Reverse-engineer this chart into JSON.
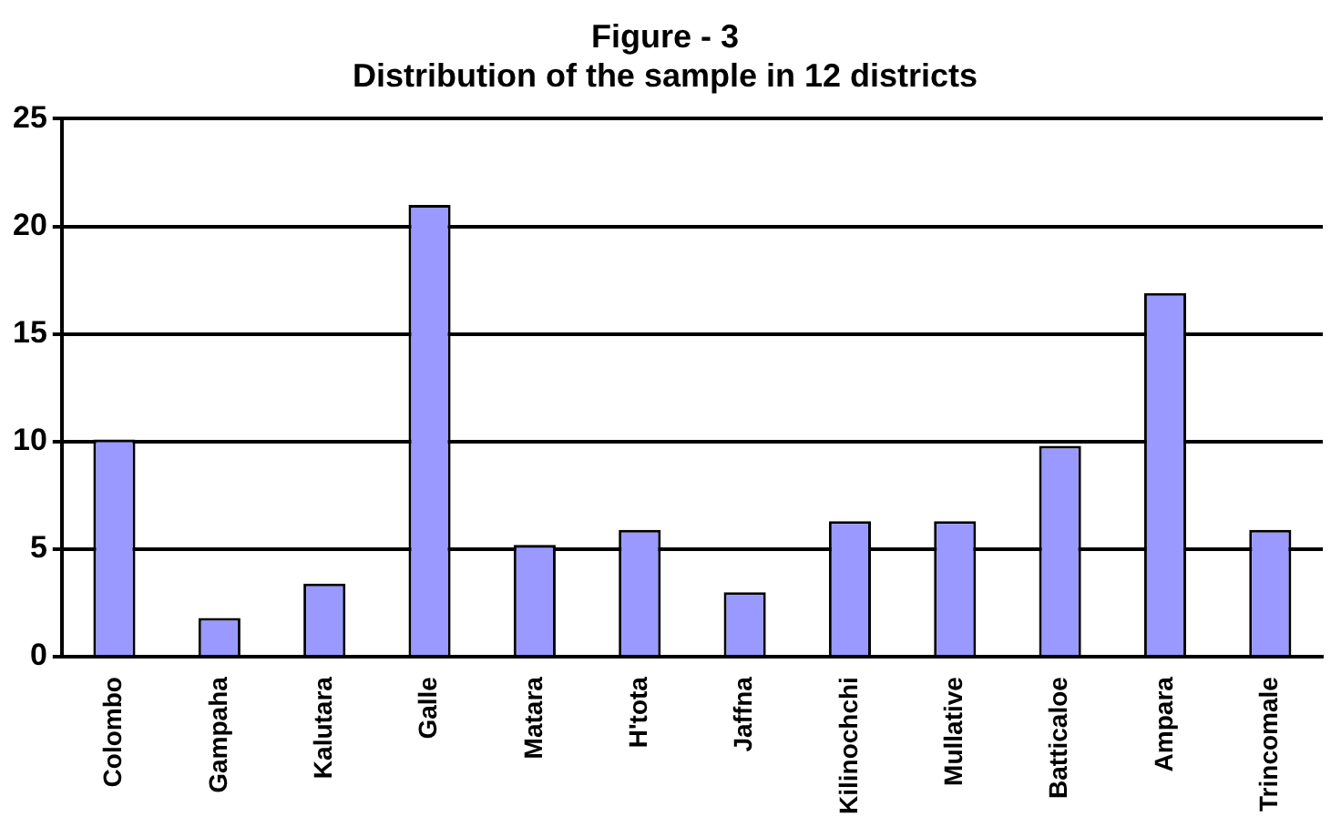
{
  "chart_data": {
    "type": "bar",
    "title": "Figure - 3",
    "subtitle": "Distribution of the sample in 12 districts",
    "categories": [
      "Colombo",
      "Gampaha",
      "Kalutara",
      "Galle",
      "Matara",
      "H'tota",
      "Jaffna",
      "Kilinochchi",
      "Mullative",
      "Batticaloe",
      "Ampara",
      "Trincomale"
    ],
    "values": [
      10.1,
      1.8,
      3.4,
      21,
      5.2,
      5.9,
      3,
      6.3,
      6.3,
      9.8,
      16.9,
      5.9
    ],
    "color": "#9999ff",
    "ylim": [
      0,
      25
    ],
    "yticks": [
      0,
      5,
      10,
      15,
      20,
      25
    ],
    "grid": "y",
    "legend": false
  }
}
